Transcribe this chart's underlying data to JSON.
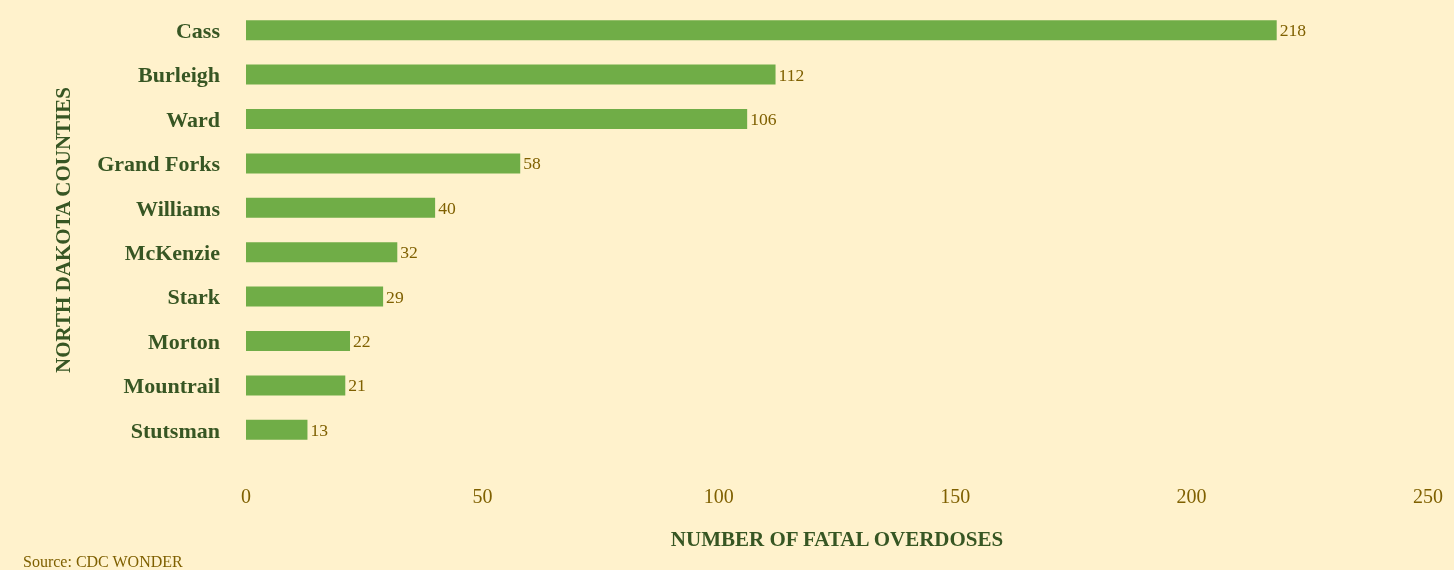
{
  "chart_data": {
    "type": "bar",
    "orientation": "horizontal",
    "categories": [
      "Cass",
      "Burleigh",
      "Ward",
      "Grand Forks",
      "Williams",
      "McKenzie",
      "Stark",
      "Morton",
      "Mountrail",
      "Stutsman"
    ],
    "values": [
      218,
      112,
      106,
      58,
      40,
      32,
      29,
      22,
      21,
      13
    ],
    "color": "#70ad47",
    "xlim": [
      0,
      250
    ],
    "xticks": [
      0,
      50,
      100,
      150,
      200,
      250
    ],
    "data_labels": true,
    "xlabel": "NUMBER OF FATAL OVERDOSES",
    "ylabel": "NORTH DAKOTA COUNTIES",
    "annotations": [
      "Source: CDC WONDER"
    ]
  }
}
